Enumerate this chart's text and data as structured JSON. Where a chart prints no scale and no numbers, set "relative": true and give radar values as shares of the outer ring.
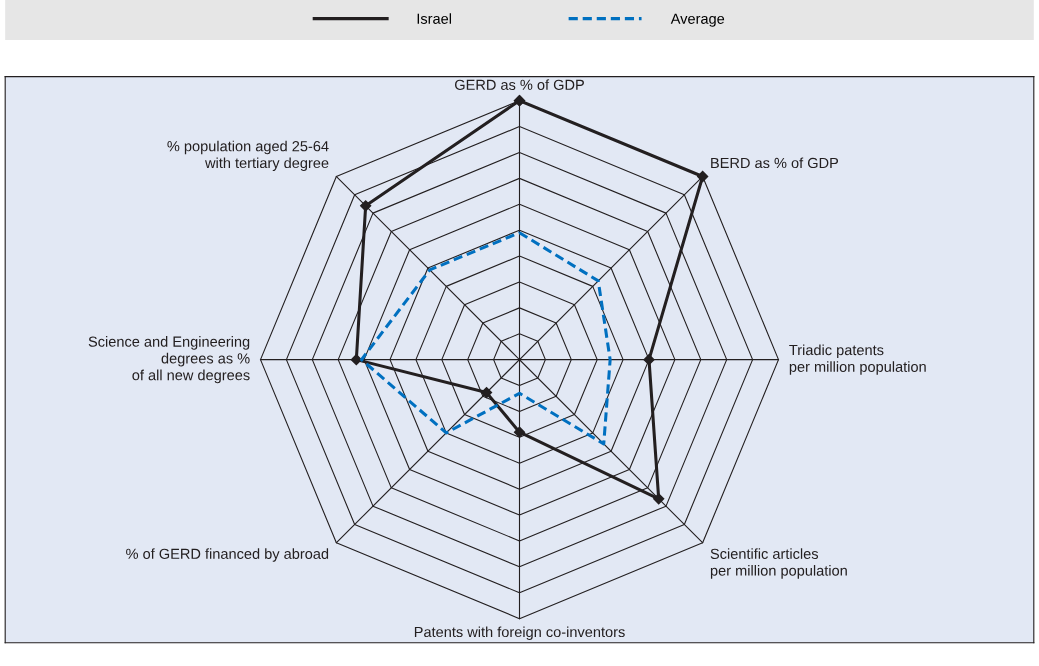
{
  "chart_data": {
    "type": "radar",
    "relative": true,
    "legend": "top",
    "grid": true,
    "categories": [
      "GERD as % of GDP",
      "BERD as % of GDP",
      "Triadic patents\nper million population",
      "Scientific articles\nper million population",
      "Patents with foreign co-inventors",
      "% of GERD financed by abroad",
      "Science and Engineering\ndegrees as %\nof all new degrees",
      "% population aged 25-64\nwith tertiary degree"
    ],
    "series": [
      {
        "name": "Israel",
        "color": "#231f20",
        "line_style": "solid",
        "marker": "diamond",
        "values": [
          1.0,
          1.0,
          0.5,
          0.76,
          0.28,
          0.18,
          0.63,
          0.84
        ]
      },
      {
        "name": "Average",
        "color": "#0070c0",
        "line_style": "dashed",
        "marker": "none",
        "values": [
          0.49,
          0.43,
          0.35,
          0.46,
          0.13,
          0.4,
          0.61,
          0.49
        ]
      }
    ]
  }
}
